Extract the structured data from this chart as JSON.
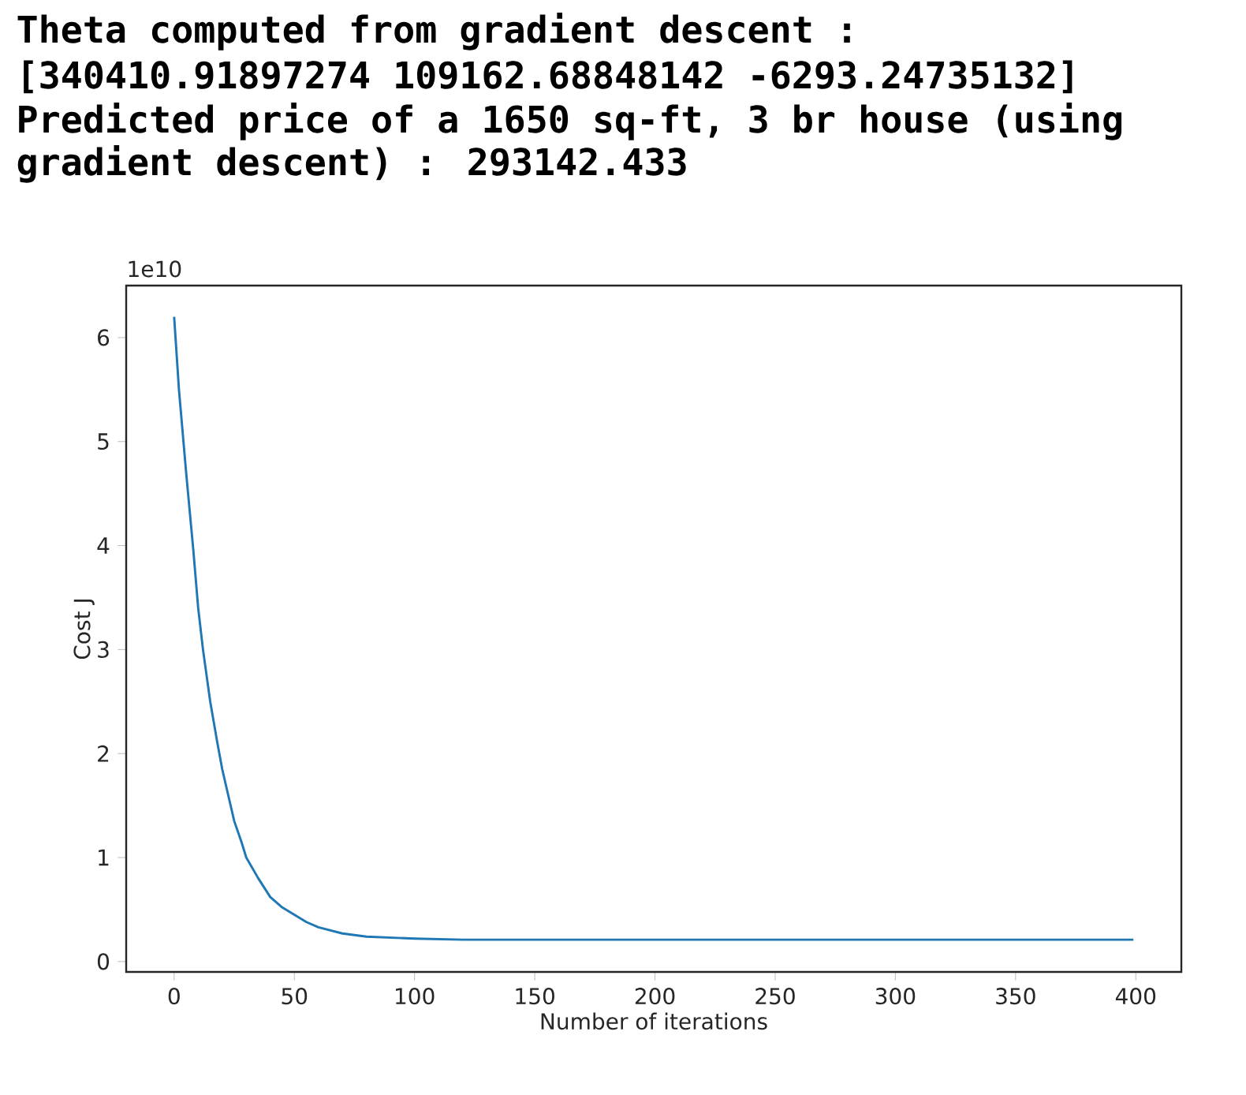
{
  "chart_data": {
    "type": "line",
    "xlabel": "Number of iterations",
    "ylabel": "Cost J",
    "annotations": [
      "Theta computed from gradient descent :",
      "[340410.91897274 109162.68848142  -6293.24735132]",
      "Predicted price of a 1650 sq-ft, 3 br house (using",
      "gradient descent) : 293142.433",
      "1e10"
    ],
    "series": [
      {
        "color": "#1f77b4",
        "x": [
          0,
          2,
          5,
          8,
          10,
          12,
          15,
          18,
          20,
          23,
          25,
          28,
          30,
          35,
          40,
          45,
          50,
          55,
          60,
          70,
          80,
          90,
          100,
          120,
          150,
          200,
          300,
          399
        ],
        "values": [
          6.2,
          5.5,
          4.7,
          3.95,
          3.4,
          3.0,
          2.5,
          2.1,
          1.85,
          1.55,
          1.35,
          1.15,
          1.0,
          0.8,
          0.62,
          0.52,
          0.45,
          0.38,
          0.33,
          0.27,
          0.24,
          0.23,
          0.22,
          0.21,
          0.21,
          0.21,
          0.21,
          0.21
        ]
      }
    ],
    "xlim": [
      -19.95,
      418.95
    ],
    "ylim": [
      -0.1,
      6.5
    ],
    "xticks": [
      0,
      50,
      100,
      150,
      200,
      250,
      300,
      350,
      400
    ],
    "yticks": [
      0,
      1,
      2,
      3,
      4,
      5,
      6
    ],
    "grid": false,
    "marker": "none",
    "line_style": "solid"
  }
}
